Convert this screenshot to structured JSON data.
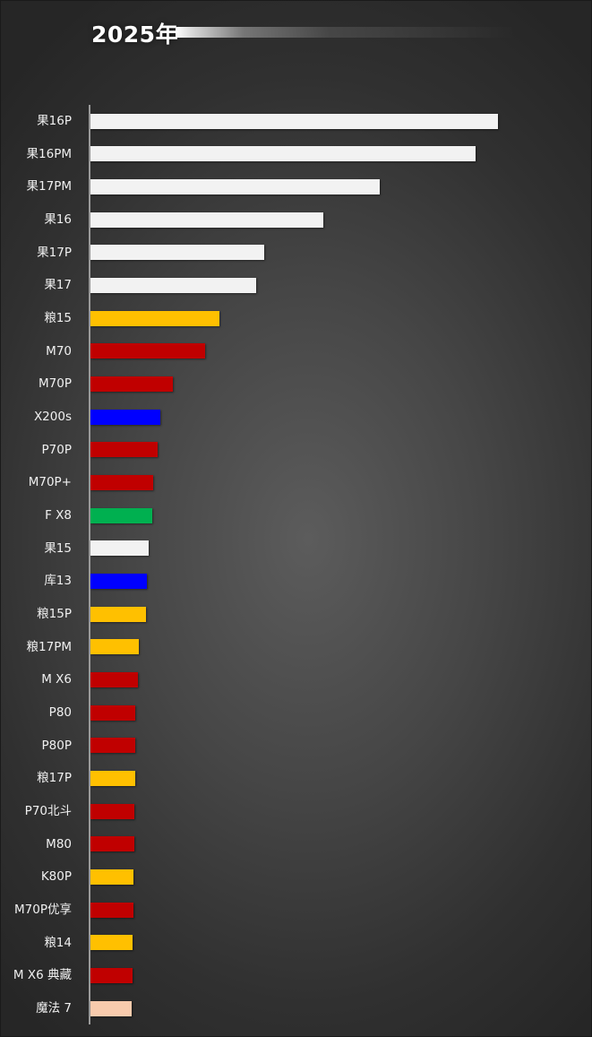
{
  "chart_data": {
    "type": "bar",
    "orientation": "horizontal",
    "title": "2025年",
    "xlabel": "",
    "ylabel": "",
    "grid": false,
    "categories": [
      "果16P",
      "果16PM",
      "果17PM",
      "果16",
      "果17P",
      "果17",
      "粮15",
      "M70",
      "M70P",
      "X200s",
      "P70P",
      "M70P+",
      "F X8",
      "果15",
      "库13",
      "粮15P",
      "粮17PM",
      "M X6",
      "P80",
      "P80P",
      "粮17P",
      "P70北斗",
      "M80",
      "K80P",
      "M70P优享",
      "粮14",
      "M X6 典藏",
      "魔法 7"
    ],
    "values": [
      455,
      430,
      323,
      260,
      194,
      185,
      144,
      128,
      92,
      78,
      75,
      70,
      69,
      65,
      63,
      62,
      54,
      53,
      50,
      50,
      50,
      49,
      49,
      48,
      48,
      47,
      47,
      46
    ],
    "colors": [
      "#f2f2f2",
      "#f2f2f2",
      "#f2f2f2",
      "#f2f2f2",
      "#f2f2f2",
      "#f2f2f2",
      "#ffc000",
      "#c00000",
      "#c00000",
      "#0000ff",
      "#c00000",
      "#c00000",
      "#00b050",
      "#f2f2f2",
      "#0000ff",
      "#ffc000",
      "#ffc000",
      "#c00000",
      "#c00000",
      "#c00000",
      "#ffc000",
      "#c00000",
      "#c00000",
      "#ffc000",
      "#c00000",
      "#ffc000",
      "#c00000",
      "#f8cbad"
    ]
  }
}
